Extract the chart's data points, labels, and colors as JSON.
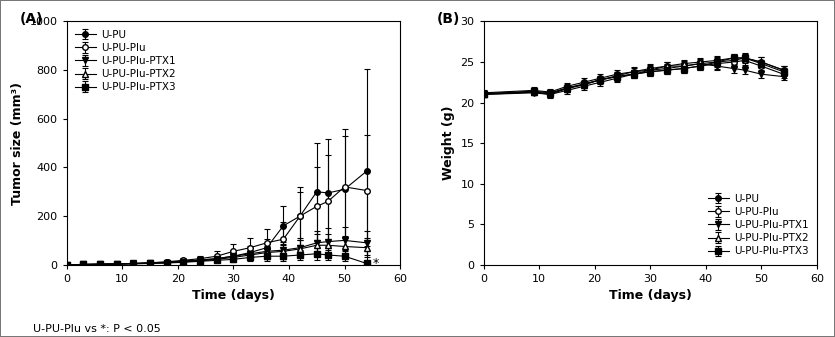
{
  "panel_A": {
    "label": "(A)",
    "xlabel": "Time (days)",
    "ylabel": "Tumor size (mm³)",
    "xlim": [
      0,
      60
    ],
    "ylim": [
      0,
      1000
    ],
    "xticks": [
      0,
      10,
      20,
      30,
      40,
      50,
      60
    ],
    "yticks": [
      0,
      200,
      400,
      600,
      800,
      1000
    ],
    "annotation": "U-PU-Plu vs *: P < 0.05",
    "series": [
      {
        "label": "U-PU",
        "marker": "o",
        "fillstyle": "full",
        "color": "black",
        "x": [
          0,
          3,
          6,
          9,
          12,
          15,
          18,
          21,
          24,
          27,
          30,
          33,
          36,
          39,
          42,
          45,
          47,
          50,
          54
        ],
        "y": [
          0,
          1,
          2,
          3,
          5,
          8,
          10,
          15,
          20,
          25,
          35,
          50,
          70,
          160,
          200,
          300,
          295,
          310,
          385
        ],
        "yerr": [
          0,
          1,
          2,
          2,
          3,
          4,
          5,
          8,
          10,
          12,
          20,
          25,
          35,
          80,
          100,
          200,
          220,
          250,
          420
        ]
      },
      {
        "label": "U-PU-Plu",
        "marker": "o",
        "fillstyle": "none",
        "color": "black",
        "x": [
          0,
          3,
          6,
          9,
          12,
          15,
          18,
          21,
          24,
          27,
          30,
          33,
          36,
          39,
          42,
          45,
          47,
          50,
          54
        ],
        "y": [
          0,
          1,
          2,
          3,
          5,
          8,
          12,
          18,
          25,
          35,
          55,
          70,
          90,
          105,
          200,
          240,
          260,
          320,
          305
        ],
        "yerr": [
          0,
          1,
          1,
          2,
          3,
          4,
          6,
          9,
          12,
          20,
          30,
          40,
          55,
          70,
          120,
          160,
          190,
          210,
          230
        ]
      },
      {
        "label": "U-PU-Plu-PTX1",
        "marker": "v",
        "fillstyle": "full",
        "color": "black",
        "x": [
          0,
          3,
          6,
          9,
          12,
          15,
          18,
          21,
          24,
          27,
          30,
          33,
          36,
          39,
          42,
          45,
          47,
          50,
          54
        ],
        "y": [
          0,
          1,
          2,
          3,
          5,
          7,
          9,
          13,
          18,
          25,
          35,
          45,
          55,
          60,
          70,
          90,
          95,
          100,
          90
        ],
        "yerr": [
          0,
          1,
          1,
          2,
          3,
          3,
          4,
          6,
          8,
          12,
          18,
          22,
          30,
          35,
          40,
          50,
          55,
          55,
          50
        ]
      },
      {
        "label": "U-PU-Plu-PTX2",
        "marker": "^",
        "fillstyle": "none",
        "color": "black",
        "x": [
          0,
          3,
          6,
          9,
          12,
          15,
          18,
          21,
          24,
          27,
          30,
          33,
          36,
          39,
          42,
          45,
          47,
          50,
          54
        ],
        "y": [
          0,
          1,
          2,
          3,
          4,
          6,
          8,
          12,
          16,
          22,
          30,
          40,
          50,
          55,
          65,
          80,
          80,
          75,
          70
        ],
        "yerr": [
          0,
          1,
          1,
          2,
          2,
          3,
          4,
          5,
          7,
          10,
          15,
          20,
          25,
          30,
          35,
          45,
          45,
          45,
          40
        ]
      },
      {
        "label": "U-PU-Plu-PTX3",
        "marker": "s",
        "fillstyle": "full",
        "color": "black",
        "x": [
          0,
          3,
          6,
          9,
          12,
          15,
          18,
          21,
          24,
          27,
          30,
          33,
          36,
          39,
          42,
          45,
          47,
          50,
          54
        ],
        "y": [
          0,
          1,
          2,
          3,
          4,
          5,
          7,
          10,
          14,
          18,
          22,
          30,
          35,
          35,
          40,
          45,
          40,
          35,
          5
        ],
        "yerr": [
          0,
          1,
          1,
          1,
          2,
          2,
          3,
          4,
          6,
          8,
          10,
          14,
          18,
          20,
          22,
          25,
          22,
          20,
          5
        ]
      }
    ]
  },
  "panel_B": {
    "label": "(B)",
    "xlabel": "Time (days)",
    "ylabel": "Weight (g)",
    "xlim": [
      0,
      60
    ],
    "ylim": [
      0,
      30
    ],
    "xticks": [
      0,
      10,
      20,
      30,
      40,
      50,
      60
    ],
    "yticks": [
      0,
      5,
      10,
      15,
      20,
      25,
      30
    ],
    "series": [
      {
        "label": "U-PU",
        "marker": "o",
        "fillstyle": "full",
        "color": "black",
        "x": [
          0,
          9,
          12,
          15,
          18,
          21,
          24,
          27,
          30,
          33,
          36,
          39,
          42,
          45,
          47,
          50,
          54
        ],
        "y": [
          21.2,
          21.5,
          21.3,
          22.0,
          22.5,
          23.0,
          23.5,
          23.8,
          24.0,
          24.5,
          24.5,
          24.8,
          25.0,
          25.2,
          25.5,
          25.0,
          24.0
        ],
        "yerr": [
          0.3,
          0.4,
          0.4,
          0.4,
          0.5,
          0.5,
          0.5,
          0.6,
          0.6,
          0.5,
          0.6,
          0.6,
          0.6,
          0.6,
          0.6,
          0.6,
          0.5
        ]
      },
      {
        "label": "U-PU-Plu",
        "marker": "o",
        "fillstyle": "none",
        "color": "black",
        "x": [
          0,
          9,
          12,
          15,
          18,
          21,
          24,
          27,
          30,
          33,
          36,
          39,
          42,
          45,
          47,
          50,
          54
        ],
        "y": [
          21.0,
          21.3,
          21.0,
          21.8,
          22.2,
          22.8,
          23.2,
          23.5,
          23.8,
          24.0,
          24.2,
          24.5,
          24.8,
          25.0,
          25.2,
          24.5,
          23.5
        ],
        "yerr": [
          0.3,
          0.4,
          0.4,
          0.4,
          0.4,
          0.5,
          0.5,
          0.5,
          0.5,
          0.5,
          0.5,
          0.5,
          0.6,
          0.6,
          0.6,
          0.6,
          0.5
        ]
      },
      {
        "label": "U-PU-Plu-PTX1",
        "marker": "v",
        "fillstyle": "full",
        "color": "black",
        "x": [
          0,
          9,
          12,
          15,
          18,
          21,
          24,
          27,
          30,
          33,
          36,
          39,
          42,
          45,
          47,
          50,
          54
        ],
        "y": [
          21.0,
          21.2,
          21.0,
          21.5,
          22.0,
          22.5,
          23.0,
          23.5,
          24.0,
          24.2,
          24.5,
          24.8,
          24.5,
          24.2,
          24.0,
          23.5,
          23.2
        ],
        "yerr": [
          0.3,
          0.3,
          0.3,
          0.4,
          0.4,
          0.4,
          0.5,
          0.5,
          0.5,
          0.5,
          0.5,
          0.5,
          0.5,
          0.5,
          0.5,
          0.5,
          0.4
        ]
      },
      {
        "label": "U-PU-Plu-PTX2",
        "marker": "^",
        "fillstyle": "none",
        "color": "black",
        "x": [
          0,
          9,
          12,
          15,
          18,
          21,
          24,
          27,
          30,
          33,
          36,
          39,
          42,
          45,
          47,
          50,
          54
        ],
        "y": [
          21.1,
          21.3,
          21.1,
          21.7,
          22.2,
          22.8,
          23.3,
          23.8,
          24.2,
          24.5,
          24.8,
          25.0,
          25.2,
          25.5,
          25.5,
          25.0,
          24.0
        ],
        "yerr": [
          0.3,
          0.3,
          0.3,
          0.4,
          0.4,
          0.4,
          0.5,
          0.5,
          0.5,
          0.5,
          0.5,
          0.5,
          0.5,
          0.5,
          0.5,
          0.6,
          0.5
        ]
      },
      {
        "label": "U-PU-Plu-PTX3",
        "marker": "s",
        "fillstyle": "full",
        "color": "black",
        "x": [
          0,
          9,
          12,
          15,
          18,
          21,
          24,
          27,
          30,
          33,
          36,
          39,
          42,
          45,
          47,
          50,
          54
        ],
        "y": [
          21.1,
          21.4,
          21.2,
          21.8,
          22.3,
          22.8,
          23.2,
          23.5,
          23.8,
          24.0,
          24.2,
          24.5,
          25.0,
          25.5,
          25.5,
          24.8,
          23.8
        ],
        "yerr": [
          0.3,
          0.3,
          0.3,
          0.4,
          0.4,
          0.4,
          0.4,
          0.5,
          0.5,
          0.5,
          0.5,
          0.5,
          0.5,
          0.5,
          0.5,
          0.5,
          0.5
        ]
      }
    ]
  }
}
